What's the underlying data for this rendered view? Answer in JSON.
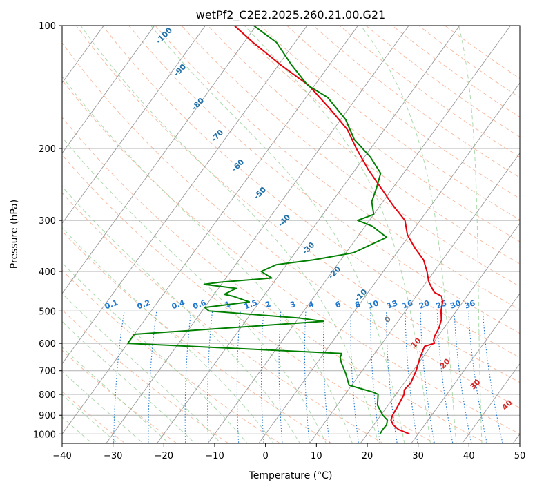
{
  "chart_data": {
    "type": "line",
    "title": "wetPf2_C2E2.2025.260.21.00.G21",
    "xlabel": "Temperature (°C)",
    "ylabel": "Pressure (hPa)",
    "xlim": [
      -40,
      50
    ],
    "ylim": [
      1050,
      100
    ],
    "y_scale": "log",
    "grid": true,
    "x_ticks": [
      -40,
      -30,
      -20,
      -10,
      0,
      10,
      20,
      30,
      40,
      50
    ],
    "y_ticks": [
      100,
      200,
      300,
      400,
      500,
      600,
      700,
      800,
      900,
      1000
    ],
    "colors": {
      "temperature": "#e8000b",
      "dewpoint": "#008000",
      "isotherm": "#999999",
      "dry_adiabat": "#f4a582",
      "moist_adiabat": "#8fce8f",
      "mixing_ratio": "#1f77d0",
      "isotherm_label": "#1f6fa8",
      "dry_adiabat_label": "#d62728",
      "zero_label": "#777777"
    },
    "series": [
      {
        "key": "temperature",
        "points": [
          [
            28.3,
            1000
          ],
          [
            25.5,
            975
          ],
          [
            23.8,
            950
          ],
          [
            22.7,
            925
          ],
          [
            22.3,
            900
          ],
          [
            22.0,
            850
          ],
          [
            21.6,
            800
          ],
          [
            21.0,
            780
          ],
          [
            21.3,
            750
          ],
          [
            20.6,
            700
          ],
          [
            19.5,
            650
          ],
          [
            18.8,
            610
          ],
          [
            20.3,
            600
          ],
          [
            19.7,
            590
          ],
          [
            19.3,
            575
          ],
          [
            19.0,
            550
          ],
          [
            18.3,
            525
          ],
          [
            17.0,
            500
          ],
          [
            16.0,
            475
          ],
          [
            15.0,
            460
          ],
          [
            13.0,
            450
          ],
          [
            10.5,
            425
          ],
          [
            8.6,
            400
          ],
          [
            6.3,
            375
          ],
          [
            2.8,
            350
          ],
          [
            -0.5,
            325
          ],
          [
            -3.0,
            300
          ],
          [
            -7.6,
            275
          ],
          [
            -12.3,
            250
          ],
          [
            -17.5,
            225
          ],
          [
            -22.8,
            200
          ],
          [
            -27.2,
            180
          ],
          [
            -33.6,
            160
          ],
          [
            -41.2,
            140
          ],
          [
            -49.5,
            125
          ],
          [
            -58.2,
            110
          ],
          [
            -64.3,
            100
          ]
        ]
      },
      {
        "key": "dewpoint",
        "points": [
          [
            22.5,
            1000
          ],
          [
            22.4,
            975
          ],
          [
            22.5,
            950
          ],
          [
            22.0,
            925
          ],
          [
            20.4,
            900
          ],
          [
            17.9,
            850
          ],
          [
            16.5,
            800
          ],
          [
            15.2,
            790
          ],
          [
            9.5,
            760
          ],
          [
            7.1,
            710
          ],
          [
            4.8,
            670
          ],
          [
            3.8,
            650
          ],
          [
            3.5,
            635
          ],
          [
            -40.0,
            600
          ],
          [
            -40.0,
            570
          ],
          [
            -4.6,
            530
          ],
          [
            -10.0,
            520
          ],
          [
            -28.6,
            500
          ],
          [
            -30.0,
            490
          ],
          [
            -22.0,
            475
          ],
          [
            -26.0,
            460
          ],
          [
            -28.0,
            455
          ],
          [
            -26.5,
            440
          ],
          [
            -33.4,
            430
          ],
          [
            -30.6,
            425
          ],
          [
            -21.0,
            415
          ],
          [
            -24.0,
            400
          ],
          [
            -22.0,
            385
          ],
          [
            -15.5,
            375
          ],
          [
            -8.5,
            360
          ],
          [
            -4.2,
            330
          ],
          [
            -8.6,
            310
          ],
          [
            -12.3,
            300
          ],
          [
            -10.0,
            290
          ],
          [
            -12.2,
            270
          ],
          [
            -13.2,
            250
          ],
          [
            -14.5,
            230
          ],
          [
            -18.8,
            210
          ],
          [
            -24.5,
            190
          ],
          [
            -29.0,
            170
          ],
          [
            -35.7,
            150
          ],
          [
            -41.4,
            140
          ],
          [
            -47.4,
            125
          ],
          [
            -53.6,
            110
          ],
          [
            -60.5,
            100
          ]
        ]
      }
    ],
    "isotherm_labels": [
      "-100",
      "-90",
      "-80",
      "-70",
      "-60",
      "-50",
      "-40",
      "-30",
      "-20",
      "-10",
      "0",
      "10",
      "20",
      "30",
      "40"
    ],
    "mixing_ratio_labels": [
      "0.1",
      "0.2",
      "0.4",
      "0.6",
      "1",
      "1.5",
      "2",
      "3",
      "4",
      "6",
      "8",
      "10",
      "13",
      "16",
      "20",
      "25",
      "30",
      "36"
    ]
  }
}
